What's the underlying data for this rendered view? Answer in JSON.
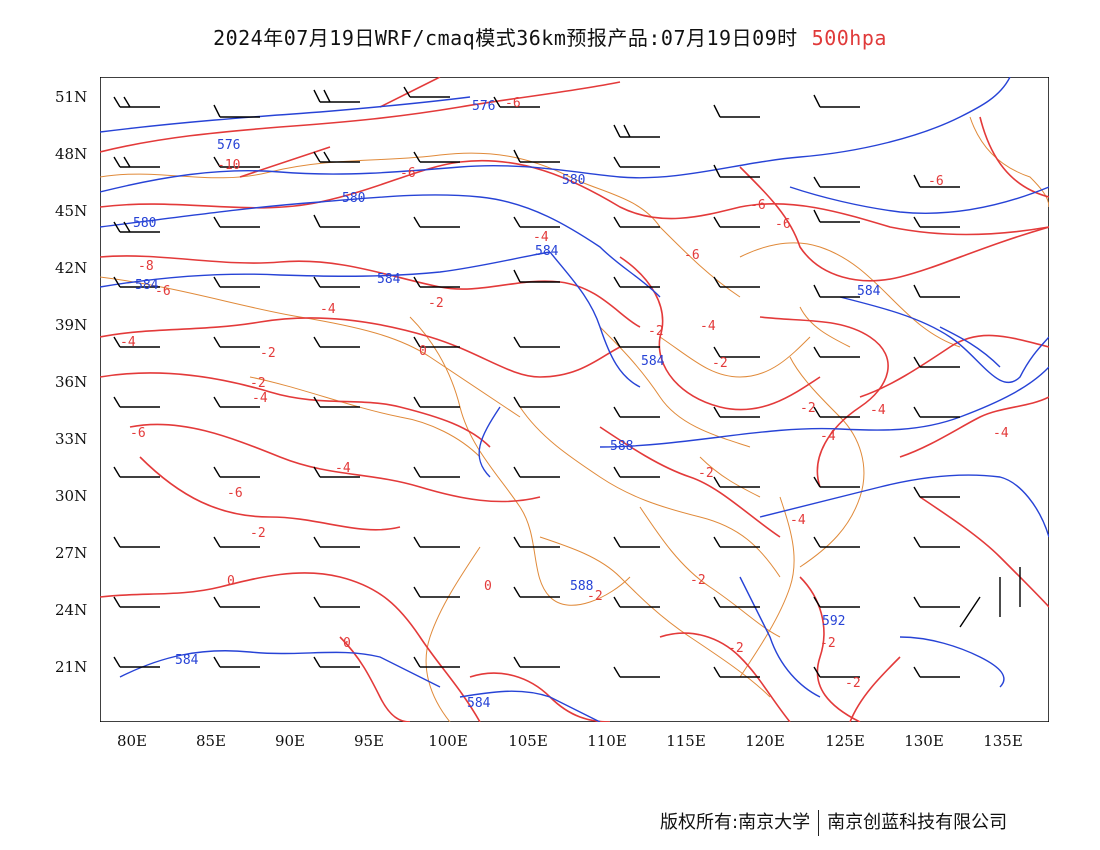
{
  "title": {
    "main": "2024年07月19日WRF/cmaq模式36km预报产品:07月19日09时",
    "level": "500hpa"
  },
  "axes": {
    "lat_ticks": [
      "51N",
      "48N",
      "45N",
      "42N",
      "39N",
      "36N",
      "33N",
      "30N",
      "27N",
      "24N",
      "21N"
    ],
    "lon_ticks": [
      "80E",
      "85E",
      "90E",
      "95E",
      "100E",
      "105E",
      "110E",
      "115E",
      "120E",
      "125E",
      "130E",
      "135E"
    ]
  },
  "geopotential_labels": [
    "576",
    "576",
    "580",
    "580",
    "580",
    "584",
    "584",
    "584",
    "584",
    "584",
    "588",
    "588",
    "592",
    "584",
    "584"
  ],
  "temperature_labels": [
    "-10",
    "-6",
    "-6",
    "-8",
    "-6",
    "-4",
    "-6",
    "-6",
    "-6",
    "-2",
    "-4",
    "-2",
    "0",
    "-2",
    "-2",
    "-4",
    "-4",
    "-4",
    "-4",
    "-2",
    "-2",
    "-6",
    "-6",
    "-4",
    "-4",
    "-2",
    "-2",
    "0",
    "0",
    "0",
    "-2",
    "-2",
    "-2",
    "-2",
    "-4",
    "-2",
    "-6",
    "-4"
  ],
  "colors": {
    "geopotential": "#2743d6",
    "temperature": "#e33a3a",
    "borders": "#e08a3a",
    "wind_barbs": "#000000"
  },
  "footer": {
    "left": "版权所有:南京大学",
    "right": "南京创蓝科技有限公司"
  }
}
